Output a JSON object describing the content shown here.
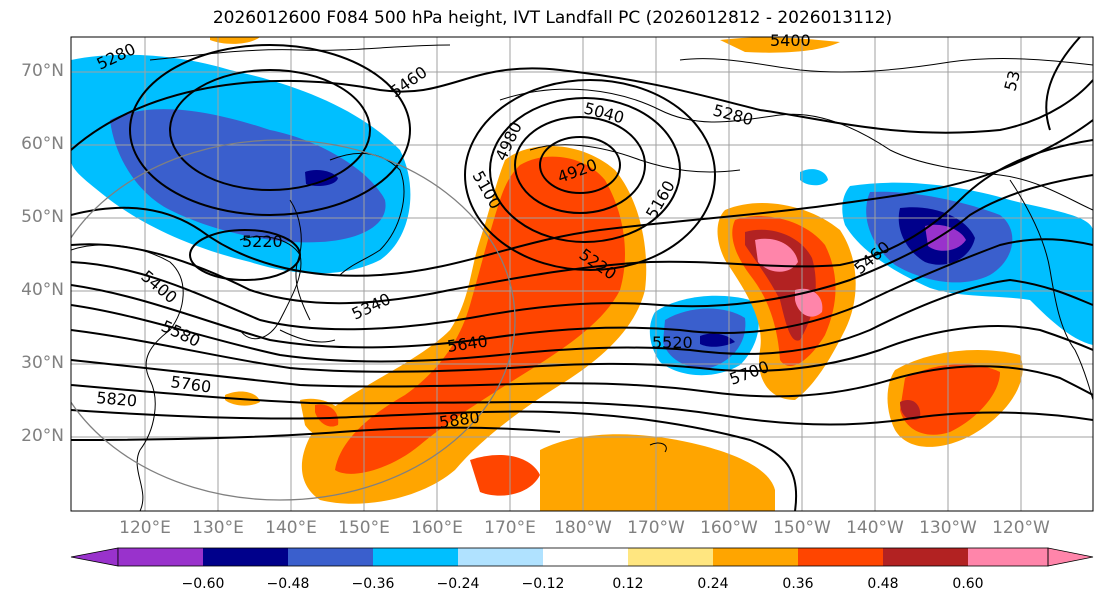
{
  "title": "2026012600 F084 500 hPa height, IVT Landfall PC (2026012812 - 2026013112)",
  "map": {
    "lat_labels": [
      "70°N",
      "60°N",
      "50°N",
      "40°N",
      "30°N",
      "20°N"
    ],
    "lon_labels": [
      "120°E",
      "130°E",
      "140°E",
      "150°E",
      "160°E",
      "170°E",
      "180°W",
      "170°W",
      "160°W",
      "150°W",
      "140°W",
      "130°W",
      "120°W"
    ],
    "contour_labels": [
      "5280",
      "5460",
      "5040",
      "4980",
      "4920",
      "5100",
      "5160",
      "5280",
      "5220",
      "5220",
      "5400",
      "5340",
      "5580",
      "5640",
      "5520",
      "5460",
      "5700",
      "5760",
      "5820",
      "5880",
      "5400",
      "53"
    ]
  },
  "colorbar": {
    "ticks": [
      "−0.60",
      "−0.48",
      "−0.36",
      "−0.24",
      "−0.12",
      "0.12",
      "0.24",
      "0.36",
      "0.48",
      "0.60"
    ],
    "colors": [
      "#9932CC",
      "#00008B",
      "#3A5FCD",
      "#00BFFF",
      "#B0E2FF",
      "#FFFFFF",
      "#FFE680",
      "#FFA500",
      "#FF4500",
      "#B22222",
      "#FF85AA"
    ]
  }
}
